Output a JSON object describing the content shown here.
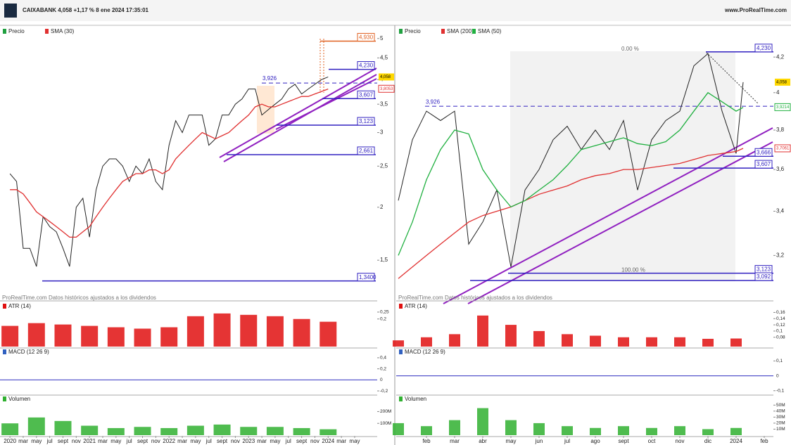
{
  "header": {
    "title": "CAIXABANK 4,058 +1,17 % 8 ene 2024 17:35:01",
    "site": "www.ProRealTime.com"
  },
  "chart_data": [
    {
      "type": "line",
      "yscale": "log",
      "note": "ProRealTime.com Datos históricos ajustados a los dividendos",
      "xlim": [
        -1.5,
        55.4
      ],
      "ylim": [
        1.24,
        5.29
      ],
      "yticks": [
        {
          "value": 5,
          "label": "5"
        },
        {
          "value": 4.5,
          "label": "4,5"
        },
        {
          "value": 4,
          "label": "4"
        },
        {
          "value": 3.5,
          "label": "3,5"
        },
        {
          "value": 3,
          "label": "3"
        },
        {
          "value": 2.5,
          "label": "2,5"
        },
        {
          "value": 2,
          "label": "2"
        },
        {
          "value": 1.5,
          "label": "1,5"
        }
      ],
      "xticks": [
        {
          "value": 0,
          "label": "2020"
        },
        {
          "value": 2,
          "label": "mar"
        },
        {
          "value": 4,
          "label": "may"
        },
        {
          "value": 6,
          "label": "jul"
        },
        {
          "value": 8,
          "label": "sept"
        },
        {
          "value": 10,
          "label": "nov"
        },
        {
          "value": 12,
          "label": "2021"
        },
        {
          "value": 14,
          "label": "mar"
        },
        {
          "value": 16,
          "label": "may"
        },
        {
          "value": 18,
          "label": "jul"
        },
        {
          "value": 20,
          "label": "sept"
        },
        {
          "value": 22,
          "label": "nov"
        },
        {
          "value": 24,
          "label": "2022"
        },
        {
          "value": 26,
          "label": "mar"
        },
        {
          "value": 28,
          "label": "may"
        },
        {
          "value": 30,
          "label": "jul"
        },
        {
          "value": 32,
          "label": "sept"
        },
        {
          "value": 34,
          "label": "nov"
        },
        {
          "value": 36,
          "label": "2023"
        },
        {
          "value": 38,
          "label": "mar"
        },
        {
          "value": 40,
          "label": "may"
        },
        {
          "value": 42,
          "label": "jul"
        },
        {
          "value": 44,
          "label": "sept"
        },
        {
          "value": 46,
          "label": "nov"
        },
        {
          "value": 48,
          "label": "2024"
        },
        {
          "value": 50,
          "label": "mar"
        },
        {
          "value": 52,
          "label": "may"
        }
      ],
      "x": [
        0,
        1,
        2,
        3,
        4,
        5,
        6,
        7,
        8,
        9,
        10,
        11,
        12,
        13,
        14,
        15,
        16,
        17,
        18,
        19,
        20,
        21,
        22,
        23,
        24,
        25,
        26,
        27,
        28,
        29,
        30,
        31,
        32,
        33,
        34,
        35,
        36,
        37,
        38,
        39,
        40,
        41,
        42,
        43,
        44,
        45,
        46,
        47,
        48
      ],
      "series": [
        {
          "name": "Precio",
          "color": "#222222",
          "values": [
            2.4,
            2.3,
            1.6,
            1.6,
            1.45,
            1.9,
            1.8,
            1.75,
            1.6,
            1.45,
            2.0,
            2.1,
            1.7,
            2.2,
            2.5,
            2.6,
            2.6,
            2.5,
            2.3,
            2.5,
            2.4,
            2.6,
            2.3,
            2.2,
            2.8,
            3.2,
            3.0,
            3.3,
            3.3,
            3.3,
            2.8,
            2.9,
            3.3,
            3.3,
            3.5,
            3.6,
            3.8,
            3.8,
            3.3,
            3.4,
            3.5,
            3.6,
            3.8,
            3.9,
            3.7,
            3.8,
            3.9,
            4.0,
            4.058
          ]
        },
        {
          "name": "SMA (30)",
          "color": "#e03030",
          "values": [
            2.2,
            2.2,
            2.15,
            2.05,
            1.95,
            1.9,
            1.85,
            1.8,
            1.75,
            1.7,
            1.7,
            1.75,
            1.8,
            1.9,
            2.0,
            2.1,
            2.2,
            2.3,
            2.35,
            2.4,
            2.4,
            2.45,
            2.45,
            2.4,
            2.45,
            2.6,
            2.7,
            2.8,
            2.9,
            3.0,
            2.95,
            2.9,
            2.95,
            3.0,
            3.1,
            3.2,
            3.3,
            3.45,
            3.5,
            3.45,
            3.45,
            3.5,
            3.55,
            3.6,
            3.65,
            3.65,
            3.7,
            3.75,
            3.8
          ]
        }
      ],
      "levels": [
        {
          "value": 4.93,
          "label": "4,930",
          "color": "#e06020"
        },
        {
          "value": 4.23,
          "label": "4,230",
          "color": "#3020c0"
        },
        {
          "value": 3.926,
          "label": "3,926",
          "color": "#3020c0",
          "dashed": true
        },
        {
          "value": 3.607,
          "label": "3,607",
          "color": "#3020c0"
        },
        {
          "value": 3.123,
          "label": "3,123",
          "color": "#3020c0"
        },
        {
          "value": 2.661,
          "label": "2,661",
          "color": "#3020c0"
        },
        {
          "value": 1.34,
          "label": "1,3400",
          "color": "#3020c0"
        }
      ],
      "tags": [
        {
          "value": 4.058,
          "label": "4,058",
          "color": "#ffd800"
        },
        {
          "value": 3.8053,
          "label": "3,8053",
          "color": "#e03030"
        }
      ],
      "atr": {
        "title": "ATR (14)",
        "color": "#e01010",
        "ylim": [
          0,
          0.27
        ],
        "yticks": [
          {
            "value": 0.25,
            "label": "0,25"
          },
          {
            "value": 0.2,
            "label": "0,2"
          }
        ],
        "x": [
          0,
          4,
          8,
          12,
          16,
          20,
          24,
          28,
          32,
          36,
          40,
          44,
          48
        ],
        "values": [
          0.15,
          0.17,
          0.16,
          0.15,
          0.14,
          0.13,
          0.14,
          0.22,
          0.24,
          0.23,
          0.22,
          0.2,
          0.18
        ]
      },
      "macd": {
        "title": "MACD (12 26 9)",
        "ylim": [
          -0.25,
          0.45
        ],
        "yticks": [
          {
            "value": 0.4,
            "label": "0,4"
          },
          {
            "value": 0.2,
            "label": "0,2"
          },
          {
            "value": 0,
            "label": "0"
          },
          {
            "value": -0.2,
            "label": "-0,2"
          }
        ]
      },
      "volume": {
        "title": "Volumen",
        "color": "#30b030",
        "ylim": [
          0,
          280000000
        ],
        "yticks": [
          {
            "value": 200000000,
            "label": "200M"
          },
          {
            "value": 100000000,
            "label": "100M"
          }
        ],
        "x": [
          0,
          4,
          8,
          12,
          16,
          20,
          24,
          28,
          32,
          36,
          40,
          44,
          48
        ],
        "values": [
          100000000,
          150000000,
          120000000,
          80000000,
          60000000,
          70000000,
          60000000,
          80000000,
          90000000,
          70000000,
          70000000,
          60000000,
          50000000
        ]
      }
    },
    {
      "type": "line",
      "yscale": "log",
      "note": "ProRealTime.com Datos históricos ajustados a los dividendos",
      "xlim": [
        -0.075,
        13.325
      ],
      "ylim": [
        3.03,
        4.37
      ],
      "yticks": [
        {
          "value": 4.2,
          "label": "4,2"
        },
        {
          "value": 4,
          "label": "4"
        },
        {
          "value": 3.8,
          "label": "3,8"
        },
        {
          "value": 3.6,
          "label": "3,6"
        },
        {
          "value": 3.4,
          "label": "3,4"
        },
        {
          "value": 3.2,
          "label": "3,2"
        }
      ],
      "xticks": [
        {
          "value": 1,
          "label": "feb"
        },
        {
          "value": 2,
          "label": "mar"
        },
        {
          "value": 3,
          "label": "abr"
        },
        {
          "value": 4,
          "label": "may"
        },
        {
          "value": 5,
          "label": "jun"
        },
        {
          "value": 6,
          "label": "jul"
        },
        {
          "value": 7,
          "label": "ago"
        },
        {
          "value": 8,
          "label": "sept"
        },
        {
          "value": 9,
          "label": "oct"
        },
        {
          "value": 10,
          "label": "nov"
        },
        {
          "value": 11,
          "label": "dic"
        },
        {
          "value": 12,
          "label": "2024"
        },
        {
          "value": 13,
          "label": "feb"
        }
      ],
      "x": [
        0,
        0.5,
        1,
        1.5,
        2,
        2.5,
        3,
        3.5,
        4,
        4.5,
        5,
        5.5,
        6,
        6.5,
        7,
        7.5,
        8,
        8.5,
        9,
        9.5,
        10,
        10.5,
        11,
        11.5,
        12,
        12.25
      ],
      "series": [
        {
          "name": "Precio",
          "color": "#222222",
          "values": [
            3.45,
            3.75,
            3.9,
            3.85,
            3.9,
            3.25,
            3.35,
            3.5,
            3.15,
            3.5,
            3.6,
            3.75,
            3.82,
            3.7,
            3.8,
            3.7,
            3.85,
            3.5,
            3.75,
            3.85,
            3.9,
            4.15,
            4.22,
            3.9,
            3.68,
            4.058
          ]
        },
        {
          "name": "SMA (200)",
          "color": "#e03030",
          "values": [
            3.1,
            3.15,
            3.2,
            3.25,
            3.3,
            3.35,
            3.38,
            3.4,
            3.42,
            3.45,
            3.48,
            3.5,
            3.52,
            3.55,
            3.57,
            3.58,
            3.6,
            3.6,
            3.61,
            3.62,
            3.63,
            3.65,
            3.67,
            3.68,
            3.69,
            3.706
          ]
        },
        {
          "name": "SMA (50)",
          "color": "#20b040",
          "values": [
            3.2,
            3.35,
            3.55,
            3.7,
            3.8,
            3.78,
            3.6,
            3.5,
            3.42,
            3.45,
            3.5,
            3.55,
            3.62,
            3.7,
            3.72,
            3.74,
            3.76,
            3.73,
            3.72,
            3.74,
            3.8,
            3.9,
            4.0,
            3.95,
            3.9,
            3.92
          ]
        }
      ],
      "levels": [
        {
          "value": 4.23,
          "label": "4,230",
          "color": "#3020c0"
        },
        {
          "value": 3.926,
          "label": "3,926",
          "color": "#3020c0",
          "dashed": true
        },
        {
          "value": 3.666,
          "label": "3,666",
          "color": "#3020c0"
        },
        {
          "value": 3.607,
          "label": "3,607",
          "color": "#3020c0"
        },
        {
          "value": 3.123,
          "label": "3,123",
          "color": "#3020c0"
        },
        {
          "value": 3.092,
          "label": "3,092",
          "color": "#3020c0"
        }
      ],
      "fib": [
        {
          "value": 4.23,
          "label": "0.00 %"
        },
        {
          "value": 3.123,
          "label": "100.00 %"
        }
      ],
      "tags": [
        {
          "value": 4.058,
          "label": "4,058",
          "color": "#ffd800"
        },
        {
          "value": 3.9214,
          "label": "3,9214",
          "color": "#20b040"
        },
        {
          "value": 3.7061,
          "label": "3,7061",
          "color": "#e03030"
        }
      ],
      "atr": {
        "title": "ATR (14)",
        "color": "#e01010",
        "ylim": [
          0.05,
          0.17
        ],
        "yticks": [
          {
            "value": 0.16,
            "label": "0,16"
          },
          {
            "value": 0.14,
            "label": "0,14"
          },
          {
            "value": 0.12,
            "label": "0,12"
          },
          {
            "value": 0.1,
            "label": "0,1"
          },
          {
            "value": 0.08,
            "label": "0,08"
          }
        ],
        "x": [
          0,
          1,
          2,
          3,
          4,
          5,
          6,
          7,
          8,
          9,
          10,
          11,
          12
        ],
        "values": [
          0.07,
          0.08,
          0.09,
          0.15,
          0.12,
          0.1,
          0.09,
          0.085,
          0.08,
          0.08,
          0.08,
          0.075,
          0.076
        ]
      },
      "macd": {
        "title": "MACD (12 26 9)",
        "ylim": [
          -0.12,
          0.14
        ],
        "yticks": [
          {
            "value": 0.1,
            "label": "0,1"
          },
          {
            "value": 0,
            "label": "0"
          },
          {
            "value": -0.1,
            "label": "-0,1"
          }
        ]
      },
      "volume": {
        "title": "Volumen",
        "color": "#30b030",
        "ylim": [
          0,
          55000000
        ],
        "yticks": [
          {
            "value": 50000000,
            "label": "50M"
          },
          {
            "value": 40000000,
            "label": "40M"
          },
          {
            "value": 30000000,
            "label": "30M"
          },
          {
            "value": 20000000,
            "label": "20M"
          },
          {
            "value": 10000000,
            "label": "10M"
          }
        ],
        "x": [
          0,
          1,
          2,
          3,
          4,
          5,
          6,
          7,
          8,
          9,
          10,
          11,
          12
        ],
        "values": [
          20000000,
          15000000,
          25000000,
          45000000,
          25000000,
          20000000,
          15000000,
          12000000,
          15000000,
          12000000,
          15000000,
          10000000,
          12000000
        ]
      }
    }
  ]
}
